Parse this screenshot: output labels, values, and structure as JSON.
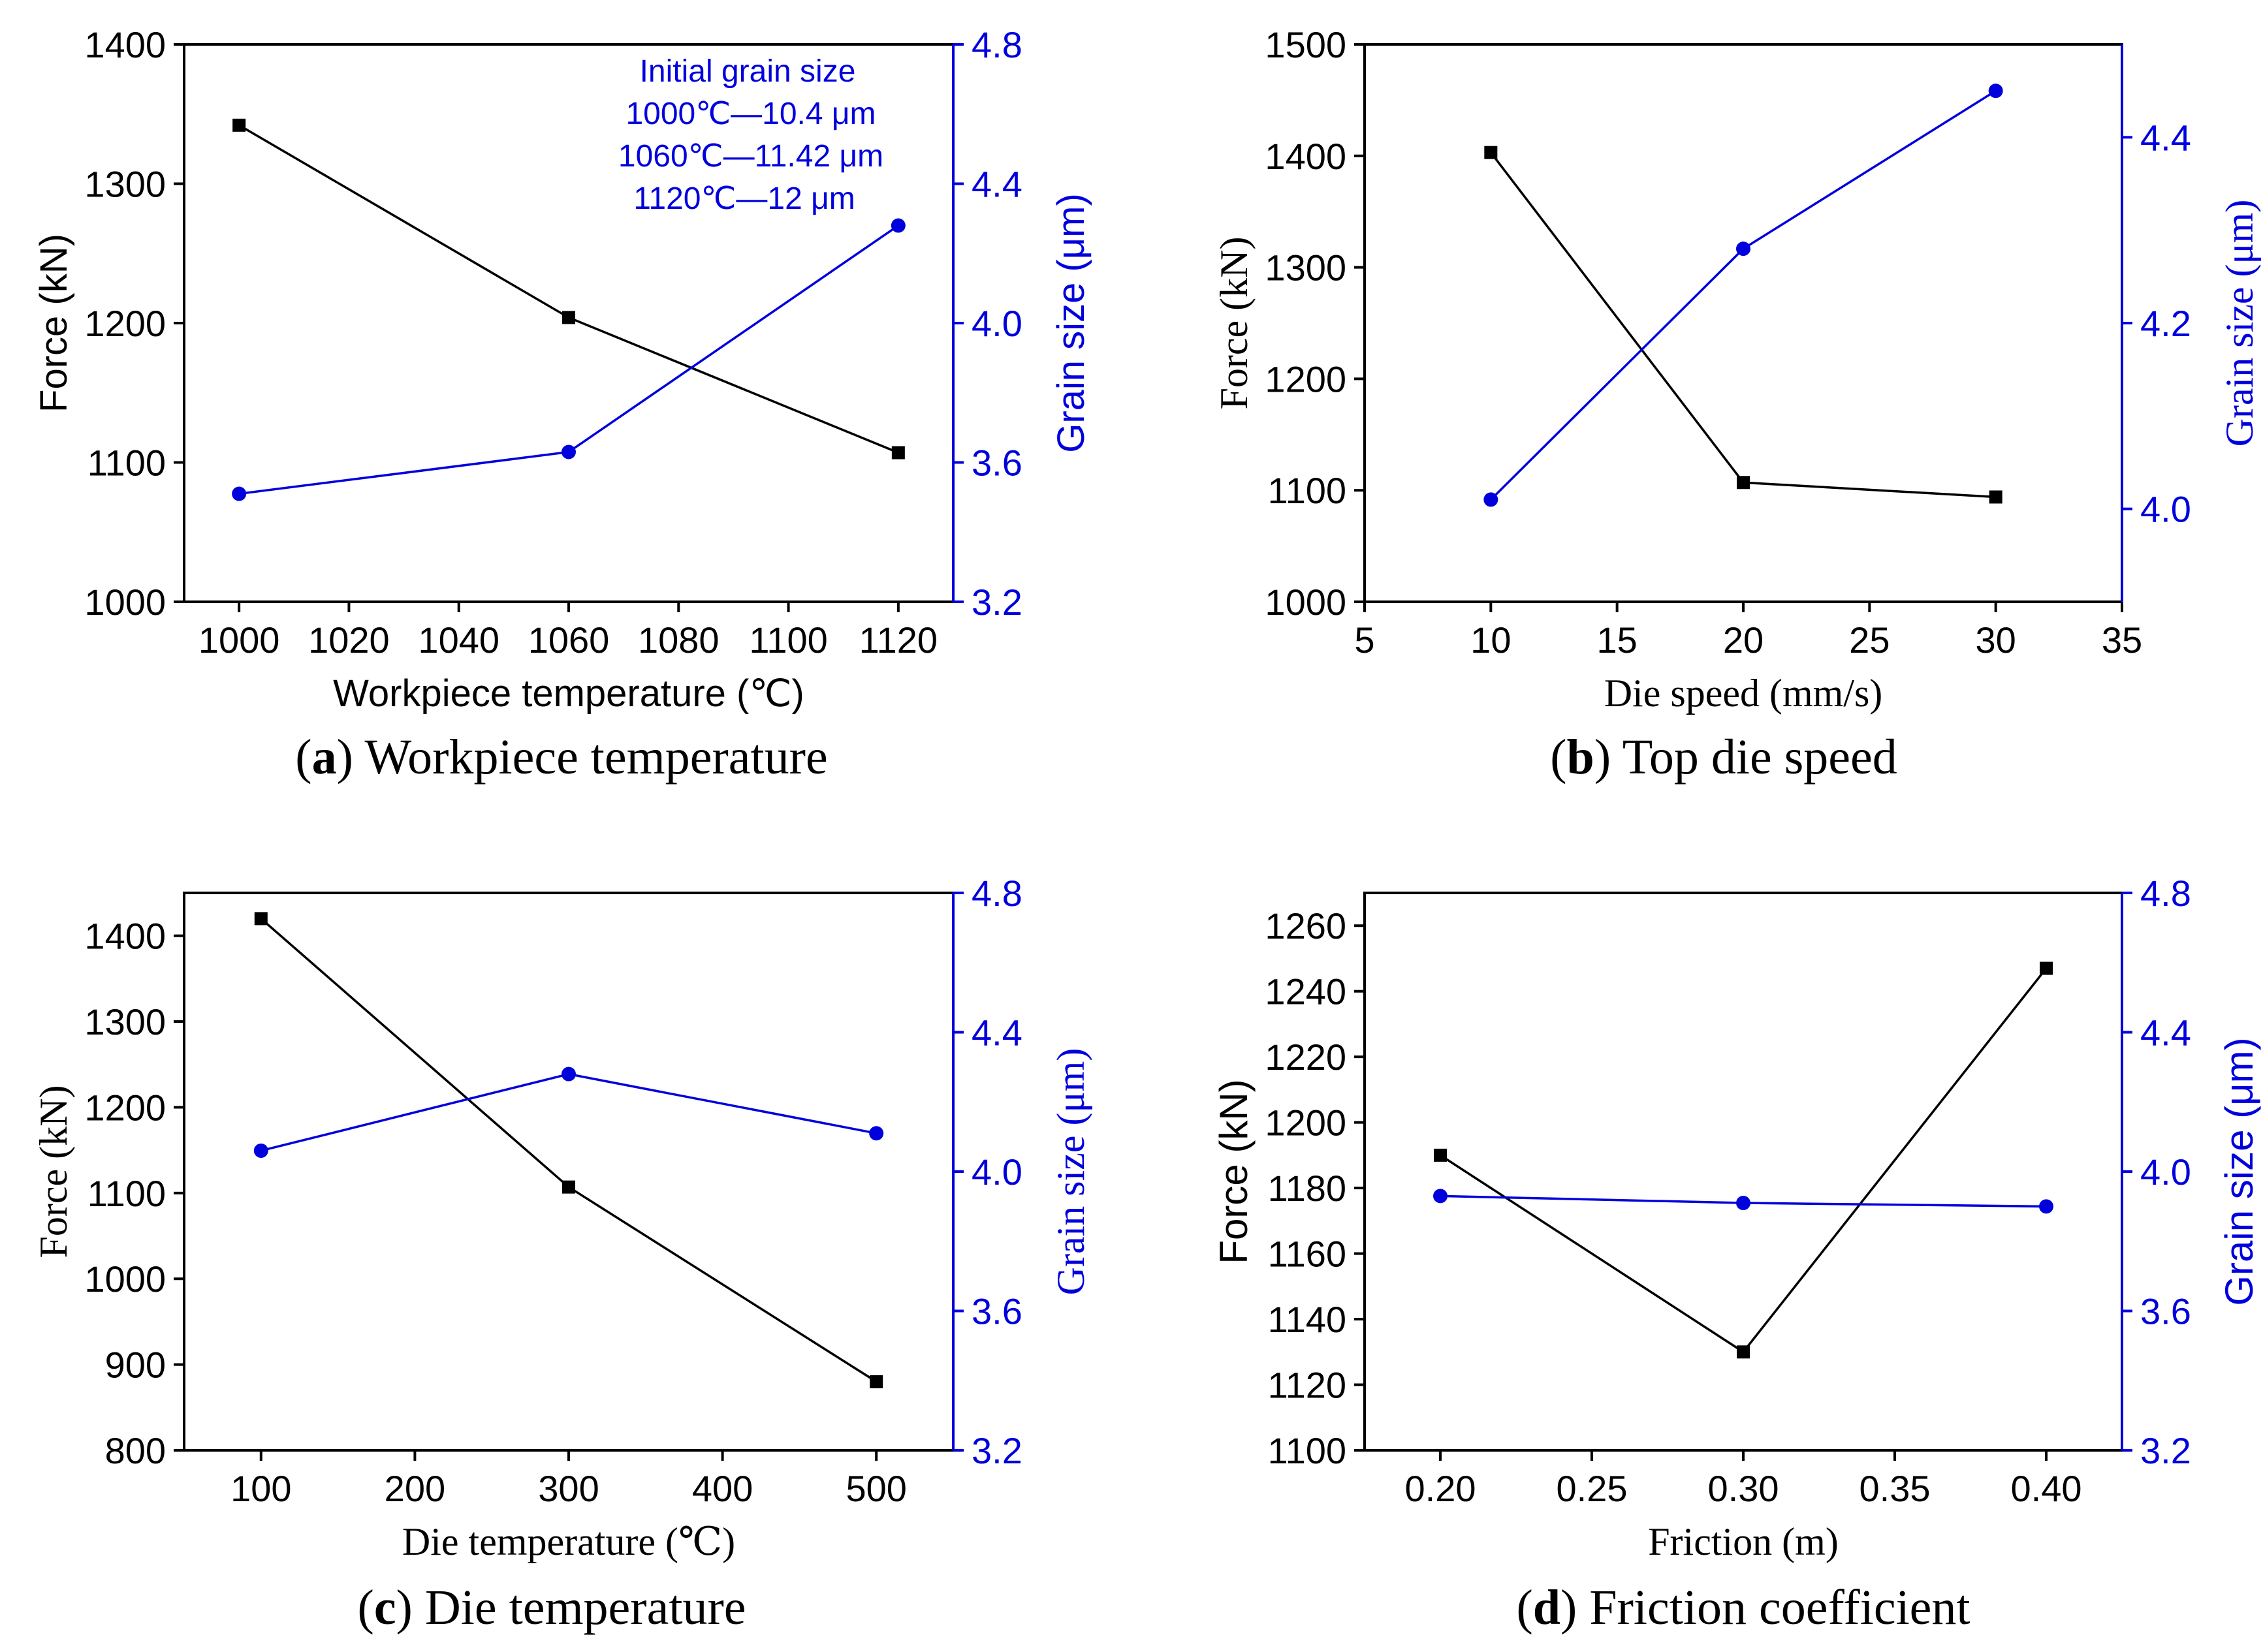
{
  "colors": {
    "force": "#000000",
    "grain": "#0000dd",
    "axis": "#000000"
  },
  "chart_data": [
    {
      "type": "line",
      "id": "a",
      "caption_letter": "a",
      "caption_text": " Workpiece temperature",
      "xlabel": "Workpiece temperature (℃)",
      "ylabel_left": "Force (kN)",
      "ylabel_right": "Grain size (μm)",
      "x": [
        1000,
        1060,
        1120
      ],
      "xlim": [
        990,
        1130
      ],
      "xticks": [
        1000,
        1020,
        1040,
        1060,
        1080,
        1100,
        1120
      ],
      "ylim_left": [
        1000,
        1400
      ],
      "yticks_left": [
        1000,
        1100,
        1200,
        1300,
        1400
      ],
      "ylim_right": [
        3.2,
        4.8
      ],
      "yticks_right": [
        "3.2",
        "3.6",
        "4.0",
        "4.4",
        "4.8"
      ],
      "series": [
        {
          "name": "Force",
          "axis": "left",
          "marker": "square",
          "values": [
            1342,
            1204,
            1107
          ]
        },
        {
          "name": "Grain size",
          "axis": "right",
          "marker": "circle",
          "values": [
            3.51,
            3.63,
            4.28
          ]
        }
      ],
      "annotation": [
        "Initial grain size",
        "1000℃—10.4 μm",
        "1060℃—11.42 μm",
        "1120℃—12 μm"
      ]
    },
    {
      "type": "line",
      "id": "b",
      "caption_letter": "b",
      "caption_text": " Top die speed",
      "xlabel": "Die speed (mm/s)",
      "ylabel_left": "Force (kN)",
      "ylabel_right": "Grain size (μm)",
      "x": [
        10,
        20,
        30
      ],
      "xlim": [
        5,
        35
      ],
      "xticks": [
        5,
        10,
        15,
        20,
        25,
        30,
        35
      ],
      "ylim_left": [
        1000,
        1500
      ],
      "yticks_left": [
        1000,
        1100,
        1200,
        1300,
        1400,
        1500
      ],
      "ylim_right": [
        3.9,
        4.5
      ],
      "yticks_right": [
        "4.0",
        "4.2",
        "4.4"
      ],
      "series": [
        {
          "name": "Force",
          "axis": "left",
          "marker": "square",
          "values": [
            1403,
            1107,
            1094
          ]
        },
        {
          "name": "Grain size",
          "axis": "right",
          "marker": "circle",
          "values": [
            4.01,
            4.28,
            4.45
          ]
        }
      ]
    },
    {
      "type": "line",
      "id": "c",
      "caption_letter": "c",
      "caption_text": " Die temperature",
      "xlabel": "Die temperature (℃)",
      "ylabel_left": "Force (kN)",
      "ylabel_right": "Grain size (μm)",
      "x": [
        100,
        300,
        500
      ],
      "xlim": [
        50,
        550
      ],
      "xticks": [
        100,
        200,
        300,
        400,
        500
      ],
      "ylim_left": [
        800,
        1450
      ],
      "yticks_left": [
        800,
        900,
        1000,
        1100,
        1200,
        1300,
        1400
      ],
      "ylim_right": [
        3.2,
        4.8
      ],
      "yticks_right": [
        "3.2",
        "3.6",
        "4.0",
        "4.4",
        "4.8"
      ],
      "series": [
        {
          "name": "Force",
          "axis": "left",
          "marker": "square",
          "values": [
            1420,
            1107,
            880
          ]
        },
        {
          "name": "Grain size",
          "axis": "right",
          "marker": "circle",
          "values": [
            4.06,
            4.28,
            4.11
          ]
        }
      ]
    },
    {
      "type": "line",
      "id": "d",
      "caption_letter": "d",
      "caption_text": " Friction coefficient",
      "xlabel": "Friction (m)",
      "ylabel_left": "Force (kN)",
      "ylabel_right": "Grain size (μm)",
      "x": [
        0.2,
        0.3,
        0.4
      ],
      "xlim": [
        0.175,
        0.425
      ],
      "xticks": [
        "0.20",
        "0.25",
        "0.30",
        "0.35",
        "0.40"
      ],
      "ylim_left": [
        1100,
        1270
      ],
      "yticks_left": [
        1100,
        1120,
        1140,
        1160,
        1180,
        1200,
        1220,
        1240,
        1260
      ],
      "ylim_right": [
        3.2,
        4.8
      ],
      "yticks_right": [
        "3.2",
        "3.6",
        "4.0",
        "4.4",
        "4.8"
      ],
      "series": [
        {
          "name": "Force",
          "axis": "left",
          "marker": "square",
          "values": [
            1190,
            1130,
            1247
          ]
        },
        {
          "name": "Grain size",
          "axis": "right",
          "marker": "circle",
          "values": [
            3.93,
            3.91,
            3.9
          ]
        }
      ]
    }
  ]
}
